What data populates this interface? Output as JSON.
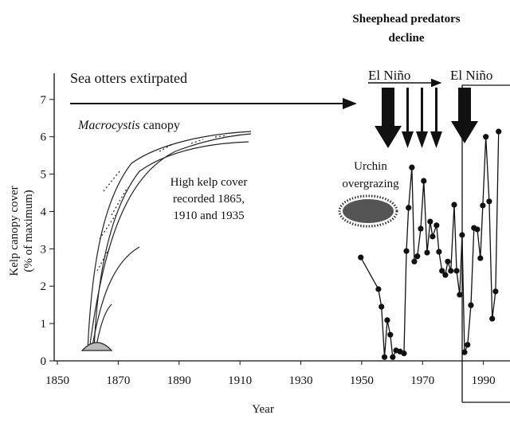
{
  "chart_data": {
    "type": "line",
    "title": [
      "Sheephead predators",
      "decline"
    ],
    "x_label": "Year",
    "y_label": [
      "Kelp canopy cover",
      "(% of maximum)"
    ],
    "annotations": {
      "otters": "Sea otters extirpated",
      "el_nino_1": "El Niño",
      "el_nino_2": "El Niño",
      "canopy": [
        "Macrocystis",
        "canopy"
      ],
      "high_kelp": [
        "High kelp cover",
        "recorded 1865,",
        "1910 and 1935"
      ],
      "urchin": [
        "Urchin",
        "overgrazing"
      ]
    },
    "xlim": [
      1850,
      1999
    ],
    "ylim": [
      0,
      7.7
    ],
    "xticks": [
      1850,
      1870,
      1890,
      1910,
      1930,
      1950,
      1970,
      1990
    ],
    "yticks": [
      0,
      1,
      2,
      3,
      4,
      5,
      6,
      7
    ],
    "series": [
      {
        "name": "Kelp canopy cover",
        "color": "#111111",
        "x": [
          1949.7,
          1955.5,
          1956.5,
          1957.5,
          1958.4,
          1959.4,
          1960.2,
          1961.3,
          1962.6,
          1963.9,
          1964.7,
          1965.4,
          1966.5,
          1967.3,
          1968.3,
          1969.4,
          1970.4,
          1971.5,
          1972.5,
          1973.3,
          1974.6,
          1975.4,
          1976.4,
          1977.5,
          1978.3,
          1979.3,
          1980.4,
          1981.2,
          1982.2,
          1983.0,
          1983.8,
          1984.8,
          1985.9,
          1986.9,
          1988.0,
          1989.0,
          1989.8,
          1990.8,
          1991.9,
          1992.9,
          1994.0,
          1995.0
        ],
        "values": [
          2.77,
          1.92,
          1.45,
          0.1,
          1.09,
          0.7,
          0.1,
          0.28,
          0.25,
          0.2,
          2.94,
          4.1,
          5.18,
          2.66,
          2.8,
          3.54,
          4.82,
          2.9,
          3.73,
          3.33,
          3.63,
          2.92,
          2.41,
          2.3,
          2.66,
          2.41,
          4.18,
          2.41,
          1.77,
          3.37,
          0.23,
          0.43,
          1.49,
          3.56,
          3.52,
          2.75,
          4.16,
          6.0,
          4.27,
          1.13,
          1.86,
          6.14
        ]
      }
    ]
  }
}
